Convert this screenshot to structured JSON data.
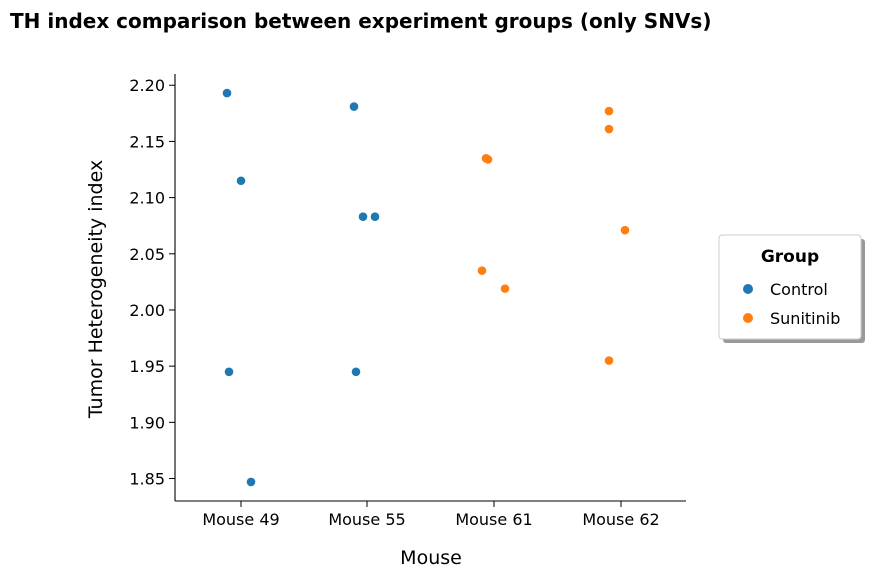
{
  "chart_data": {
    "type": "scatter",
    "title": "TH index comparison between experiment groups (only SNVs)",
    "xlabel": "Mouse",
    "ylabel": "Tumor Heterogeneity index",
    "categories": [
      "Mouse 49",
      "Mouse 55",
      "Mouse 61",
      "Mouse 62"
    ],
    "ylim": [
      1.83,
      2.21
    ],
    "yticks": [
      "1.85",
      "1.90",
      "1.95",
      "2.00",
      "2.05",
      "2.10",
      "2.15",
      "2.20"
    ],
    "grid": false,
    "legend": {
      "title": "Group",
      "placement": "right"
    },
    "series": [
      {
        "name": "Control",
        "color": "#1f77b4",
        "points": [
          {
            "category": "Mouse 49",
            "y": 2.193
          },
          {
            "category": "Mouse 49",
            "y": 2.115
          },
          {
            "category": "Mouse 49",
            "y": 1.945
          },
          {
            "category": "Mouse 49",
            "y": 1.847
          },
          {
            "category": "Mouse 55",
            "y": 2.181
          },
          {
            "category": "Mouse 55",
            "y": 2.083
          },
          {
            "category": "Mouse 55",
            "y": 2.083
          },
          {
            "category": "Mouse 55",
            "y": 1.945
          }
        ]
      },
      {
        "name": "Sunitinib",
        "color": "#ff7f0e",
        "points": [
          {
            "category": "Mouse 61",
            "y": 2.135
          },
          {
            "category": "Mouse 61",
            "y": 2.134
          },
          {
            "category": "Mouse 61",
            "y": 2.035
          },
          {
            "category": "Mouse 61",
            "y": 2.019
          },
          {
            "category": "Mouse 62",
            "y": 2.177
          },
          {
            "category": "Mouse 62",
            "y": 2.161
          },
          {
            "category": "Mouse 62",
            "y": 2.071
          },
          {
            "category": "Mouse 62",
            "y": 1.955
          }
        ]
      }
    ]
  }
}
